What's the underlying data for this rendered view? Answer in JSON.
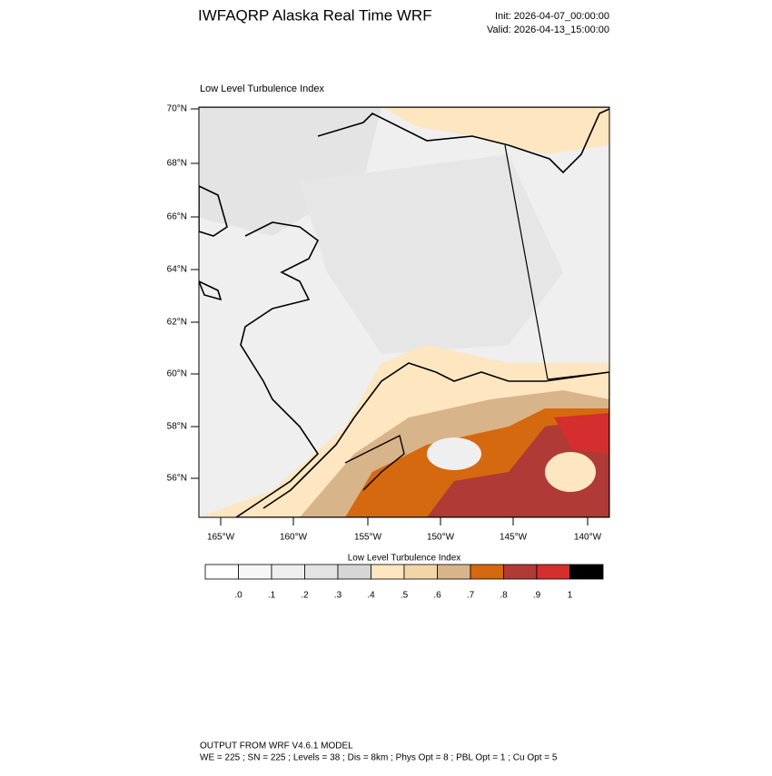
{
  "header": {
    "title": "IWFAQRP Alaska Real Time WRF",
    "init": "Init: 2026-04-07_00:00:00",
    "valid": "Valid: 2026-04-13_15:00:00"
  },
  "map": {
    "title": "Low Level Turbulence Index",
    "lat_labels": [
      "70°N",
      "68°N",
      "66°N",
      "64°N",
      "62°N",
      "60°N",
      "58°N",
      "56°N"
    ],
    "lon_labels": [
      "165°W",
      "160°W",
      "155°W",
      "150°W",
      "145°W",
      "140°W"
    ]
  },
  "colorbar": {
    "title": "Low Level Turbulence Index",
    "labels": [
      ".0",
      ".1",
      ".2",
      ".3",
      ".4",
      ".5",
      ".6",
      ".7",
      ".8",
      ".9",
      "1"
    ]
  },
  "footer": {
    "line1": "OUTPUT FROM WRF V4.6.1 MODEL",
    "line2": "WE = 225 ; SN = 225 ; Levels = 38 ; Dis = 8km ; Phys Opt = 8 ; PBL Opt = 1 ; Cu Opt = 5"
  }
}
